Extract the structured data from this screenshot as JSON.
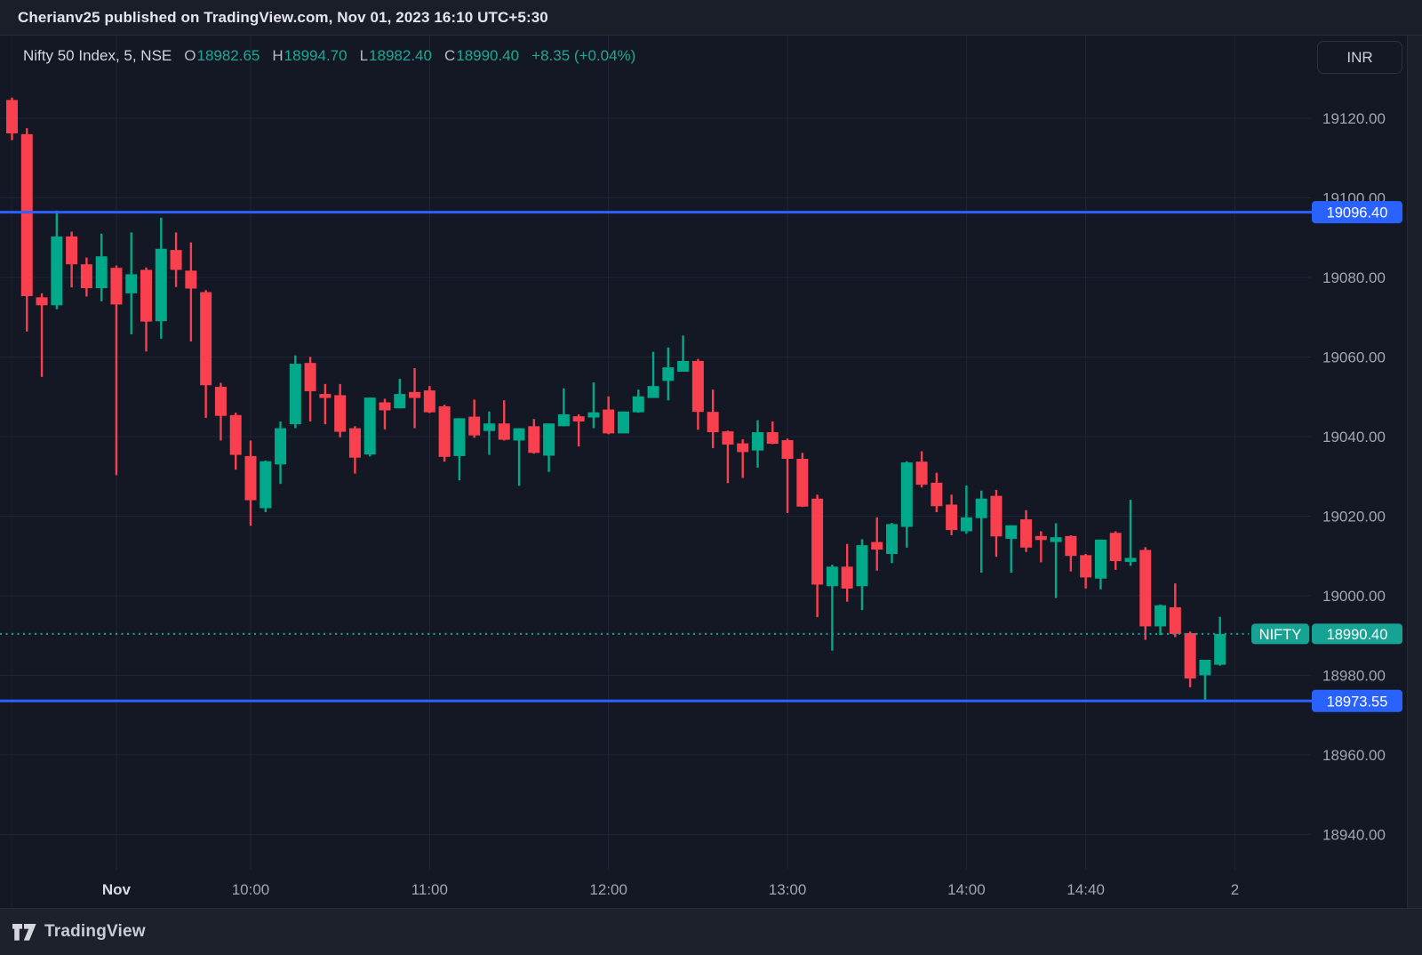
{
  "publisher_bar": {
    "text": "Cherianv25 published on TradingView.com, Nov 01, 2023 16:10 UTC+5:30"
  },
  "legend": {
    "title": "Nifty 50 Index, 5, NSE",
    "ohlc": [
      {
        "label": "O",
        "value": "18982.65"
      },
      {
        "label": "H",
        "value": "18994.70"
      },
      {
        "label": "L",
        "value": "18982.40"
      },
      {
        "label": "C",
        "value": "18990.40"
      }
    ],
    "change": "+8.35 (+0.04%)"
  },
  "toolbar": {
    "currency_label": "INR"
  },
  "footer": {
    "brand": "TradingView"
  },
  "colors": {
    "up": "#00a98a",
    "down": "#f9404f",
    "line_blue": "#2962ff",
    "last_price_teal": "#16a394",
    "axis_text": "#a2a6b0",
    "axis_text_bright": "#d8dbe1",
    "grid": "#202534",
    "badge_text": "#ffffff"
  },
  "chart_data": {
    "type": "candlestick",
    "title": "Nifty 50 Index, 5, NSE",
    "symbol": "NIFTY",
    "interval_minutes": 5,
    "exchange": "NSE",
    "currency": "INR",
    "y_ticks": [
      19120,
      19100,
      19080,
      19060,
      19040,
      19020,
      19000,
      18980,
      18960,
      18940
    ],
    "y_range_visible": [
      18925,
      19128
    ],
    "grid": true,
    "x_ticks": [
      {
        "label": "Nov",
        "index": 7,
        "bold": true
      },
      {
        "label": "10:00",
        "index": 16,
        "bold": false
      },
      {
        "label": "11:00",
        "index": 28,
        "bold": false
      },
      {
        "label": "12:00",
        "index": 40,
        "bold": false
      },
      {
        "label": "13:00",
        "index": 52,
        "bold": false
      },
      {
        "label": "14:00",
        "index": 64,
        "bold": false
      },
      {
        "label": "14:40",
        "index": 72,
        "bold": false
      },
      {
        "label": "2",
        "index": 82,
        "bold": false
      }
    ],
    "price_lines": [
      {
        "label": "19096.40",
        "price": 19096.4
      },
      {
        "label": "18973.55",
        "price": 18973.55
      }
    ],
    "last_price": {
      "symbol_badge": "NIFTY",
      "label": "18990.40",
      "price": 18990.4
    },
    "candles": [
      [
        "Oct 31 14:55",
        19124.6,
        19125.2,
        19114.5,
        19116.2
      ],
      [
        "Oct 31 15:00",
        19116.0,
        19117.5,
        19066.4,
        19075.3
      ],
      [
        "Oct 31 15:05",
        19075.0,
        19076.0,
        19055.0,
        19073.0
      ],
      [
        "Oct 31 15:10",
        19073.0,
        19096.8,
        19072.0,
        19090.3
      ],
      [
        "Oct 31 15:15",
        19090.3,
        19091.5,
        19077.5,
        19083.3
      ],
      [
        "Oct 31 15:20",
        19083.3,
        19085.0,
        19075.2,
        19077.3
      ],
      [
        "Oct 31 15:25",
        19077.3,
        19091.0,
        19074.0,
        19085.3
      ],
      [
        "09:15",
        19082.4,
        19083.0,
        19030.3,
        19073.2
      ],
      [
        "09:20",
        19076.0,
        19091.3,
        19065.7,
        19080.8
      ],
      [
        "09:25",
        19081.9,
        19082.5,
        19061.4,
        19068.9
      ],
      [
        "09:30",
        19069.0,
        19095.0,
        19064.6,
        19087.2
      ],
      [
        "09:35",
        19086.9,
        19091.3,
        19077.6,
        19081.9
      ],
      [
        "09:40",
        19081.7,
        19088.8,
        19063.9,
        19077.2
      ],
      [
        "09:45",
        19076.3,
        19076.8,
        19044.7,
        19052.9
      ],
      [
        "09:50",
        19052.5,
        19053.5,
        19039.0,
        19045.2
      ],
      [
        "09:55",
        19045.4,
        19046.0,
        19031.7,
        19035.4
      ],
      [
        "10:00",
        19035.1,
        19039.0,
        19017.6,
        19024.0
      ],
      [
        "10:05",
        19022.0,
        19034.0,
        19021.0,
        19033.8
      ],
      [
        "10:10",
        19033.0,
        19043.8,
        19028.1,
        19042.1
      ],
      [
        "10:15",
        19043.1,
        19060.4,
        19042.1,
        19058.3
      ],
      [
        "10:20",
        19058.5,
        19060.0,
        19043.8,
        19051.4
      ],
      [
        "10:25",
        19050.7,
        19053.2,
        19043.1,
        19049.7
      ],
      [
        "10:30",
        19050.4,
        19053.2,
        19039.8,
        19041.2
      ],
      [
        "10:35",
        19042.1,
        19042.6,
        19030.7,
        19034.7
      ],
      [
        "10:40",
        19035.5,
        19049.8,
        19035.0,
        19049.8
      ],
      [
        "10:45",
        19048.6,
        19049.5,
        19041.8,
        19046.6
      ],
      [
        "10:50",
        19047.1,
        19054.5,
        19047.1,
        19050.7
      ],
      [
        "10:55",
        19051.2,
        19057.2,
        19042.1,
        19049.7
      ],
      [
        "11:00",
        19051.6,
        19052.7,
        19045.9,
        19046.1
      ],
      [
        "11:05",
        19047.6,
        19048.0,
        19033.7,
        19034.9
      ],
      [
        "11:10",
        19035.1,
        19044.6,
        19029.0,
        19044.6
      ],
      [
        "11:15",
        19045.0,
        19049.3,
        19039.7,
        19040.3
      ],
      [
        "11:20",
        19041.4,
        19046.3,
        19035.4,
        19043.3
      ],
      [
        "11:25",
        19043.3,
        19049.1,
        19039.0,
        19039.2
      ],
      [
        "11:30",
        19039.0,
        19042.1,
        19027.6,
        19042.1
      ],
      [
        "11:35",
        19042.6,
        19044.4,
        19035.7,
        19035.9
      ],
      [
        "11:40",
        19035.2,
        19043.3,
        19031.1,
        19043.3
      ],
      [
        "11:45",
        19042.6,
        19052.1,
        19042.6,
        19045.6
      ],
      [
        "11:50",
        19045.1,
        19045.6,
        19037.5,
        19043.8
      ],
      [
        "11:55",
        19044.8,
        19053.6,
        19042.1,
        19046.1
      ],
      [
        "12:00",
        19046.8,
        19050.1,
        19040.6,
        19040.8
      ],
      [
        "12:05",
        19040.8,
        19046.3,
        19040.8,
        19046.3
      ],
      [
        "12:10",
        19046.1,
        19051.8,
        19046.0,
        19050.1
      ],
      [
        "12:15",
        19049.7,
        19061.3,
        19049.7,
        19052.7
      ],
      [
        "12:20",
        19054.0,
        19062.4,
        19049.1,
        19057.4
      ],
      [
        "12:25",
        19056.3,
        19065.4,
        19056.3,
        19059.0
      ],
      [
        "12:30",
        19059.0,
        19059.5,
        19041.7,
        19046.2
      ],
      [
        "12:35",
        19046.2,
        19051.8,
        19037.1,
        19041.1
      ],
      [
        "12:40",
        19041.3,
        19041.5,
        19028.3,
        19038.0
      ],
      [
        "12:45",
        19038.3,
        19039.3,
        19029.6,
        19036.1
      ],
      [
        "12:50",
        19036.5,
        19044.1,
        19032.2,
        19041.1
      ],
      [
        "12:55",
        19041.1,
        19043.8,
        19038.1,
        19038.2
      ],
      [
        "13:00",
        19039.1,
        19039.5,
        19020.8,
        19034.4
      ],
      [
        "13:05",
        19034.4,
        19035.9,
        19022.3,
        19022.4
      ],
      [
        "13:10",
        19024.4,
        19025.4,
        18994.6,
        19002.8
      ],
      [
        "13:15",
        19002.4,
        19007.8,
        18986.2,
        19007.3
      ],
      [
        "13:20",
        19007.3,
        19013.0,
        18998.5,
        19001.8
      ],
      [
        "13:25",
        19002.4,
        19014.2,
        18996.4,
        19012.7
      ],
      [
        "13:30",
        19013.5,
        19019.7,
        19006.3,
        19011.6
      ],
      [
        "13:35",
        19010.5,
        19018.3,
        19008.2,
        19018.0
      ],
      [
        "13:40",
        19017.3,
        19033.8,
        19012.1,
        19033.5
      ],
      [
        "13:45",
        19033.7,
        19036.3,
        19027.2,
        19027.9
      ],
      [
        "13:50",
        19028.4,
        19030.9,
        19021.0,
        19022.5
      ],
      [
        "13:55",
        19022.9,
        19025.4,
        19015.2,
        19016.5
      ],
      [
        "14:00",
        19016.2,
        19027.7,
        19015.6,
        19019.7
      ],
      [
        "14:05",
        19019.5,
        19026.4,
        19005.8,
        19024.4
      ],
      [
        "14:10",
        19025.1,
        19026.6,
        19009.8,
        19014.9
      ],
      [
        "14:15",
        19014.3,
        19017.7,
        19005.8,
        19017.7
      ],
      [
        "14:20",
        19019.2,
        19021.5,
        19011.0,
        19012.1
      ],
      [
        "14:25",
        19015.0,
        19016.2,
        19008.4,
        19014.0
      ],
      [
        "14:30",
        19013.5,
        19018.2,
        18999.4,
        19014.7
      ],
      [
        "14:35",
        19015.0,
        19015.2,
        19006.1,
        19010.0
      ],
      [
        "14:40",
        19010.2,
        19010.5,
        19001.8,
        19004.6
      ],
      [
        "14:45",
        19004.3,
        19014.1,
        19001.6,
        19014.1
      ],
      [
        "14:50",
        19015.8,
        19016.2,
        19006.5,
        19008.7
      ],
      [
        "14:55",
        19008.5,
        19024.1,
        19007.5,
        19009.5
      ],
      [
        "15:00",
        19011.5,
        19012.2,
        18988.9,
        18992.3
      ],
      [
        "15:05",
        18992.3,
        18997.8,
        18990.1,
        18997.6
      ],
      [
        "15:10",
        18997.1,
        19003.1,
        18989.6,
        18990.4
      ],
      [
        "15:15",
        18990.6,
        18991.0,
        18977.0,
        18979.2
      ],
      [
        "15:20",
        18980.0,
        18983.9,
        18973.6,
        18983.9
      ],
      [
        "15:25",
        18982.65,
        18994.7,
        18982.4,
        18990.4
      ]
    ]
  }
}
